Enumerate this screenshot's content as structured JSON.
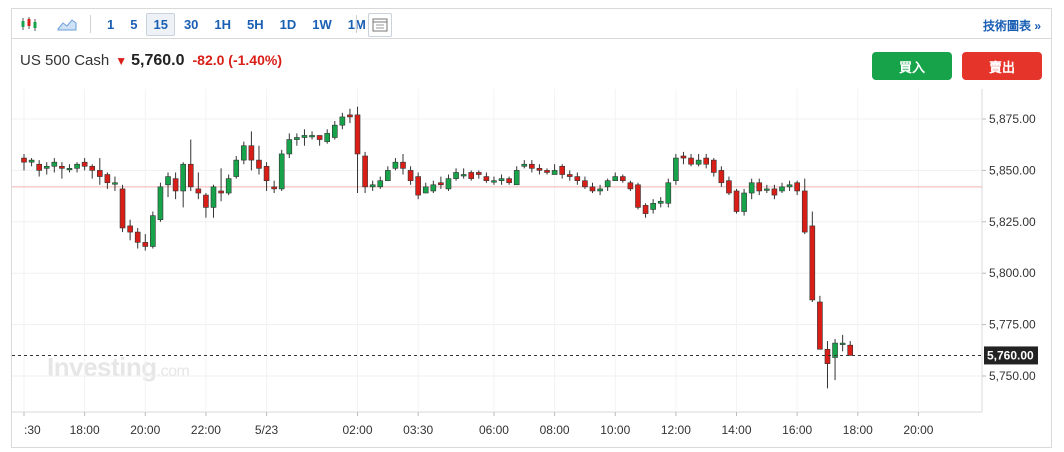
{
  "toolbar": {
    "intervals": [
      "1",
      "5",
      "15",
      "30",
      "1H",
      "5H",
      "1D",
      "1W",
      "1M"
    ],
    "active_interval": "15",
    "tech_link": "技術圖表 »"
  },
  "quote": {
    "name": "US 500 Cash",
    "price": "5,760.0",
    "change": "-82.0 (-1.40%)",
    "arrow": "▼"
  },
  "buttons": {
    "buy": "買入",
    "sell": "賣出"
  },
  "watermark": {
    "brand": "Investing",
    "suffix": ".com"
  },
  "colors": {
    "up": "#16a34a",
    "down": "#d91e18",
    "prev_close_line": "#f4b4b4",
    "accent": "#1a5fb4"
  },
  "chart_data": {
    "type": "candlestick",
    "y_range": [
      5740,
      5890
    ],
    "y_ticks": [
      "5,875.00",
      "5,850.00",
      "5,825.00",
      "5,800.00",
      "5,775.00",
      "5,750.00"
    ],
    "y_tick_values": [
      5875,
      5850,
      5825,
      5800,
      5775,
      5750
    ],
    "x_labels": [
      ":30",
      "18:00",
      "20:00",
      "22:00",
      "5/23",
      "02:00",
      "03:30",
      "06:00",
      "08:00",
      "10:00",
      "12:00",
      "14:00",
      "16:00",
      "18:00",
      "20:00"
    ],
    "x_label_index": [
      0,
      4,
      8,
      12,
      16,
      22,
      26,
      31,
      35,
      39,
      43,
      47,
      51,
      55,
      59
    ],
    "previous_close": 5842,
    "last_price": 5760,
    "last_price_label": "5,760.00",
    "candles": [
      [
        5856,
        5854,
        5858,
        5850
      ],
      [
        5854,
        5855,
        5856,
        5852
      ],
      [
        5853,
        5850,
        5855,
        5847
      ],
      [
        5851,
        5852,
        5854,
        5848
      ],
      [
        5852,
        5854,
        5856,
        5849
      ],
      [
        5852,
        5851,
        5854,
        5846
      ],
      [
        5851,
        5851,
        5853,
        5849
      ],
      [
        5851,
        5853,
        5854,
        5849
      ],
      [
        5854,
        5852,
        5856,
        5850
      ],
      [
        5852,
        5850,
        5853,
        5846
      ],
      [
        5850,
        5847,
        5856,
        5843
      ],
      [
        5848,
        5844,
        5849,
        5841
      ],
      [
        5844,
        5844,
        5847,
        5840
      ],
      [
        5841,
        5822,
        5843,
        5820
      ],
      [
        5823,
        5820,
        5826,
        5816
      ],
      [
        5820,
        5815,
        5822,
        5812
      ],
      [
        5815,
        5813,
        5819,
        5811
      ],
      [
        5813,
        5828,
        5830,
        5812
      ],
      [
        5826,
        5842,
        5844,
        5825
      ],
      [
        5843,
        5847,
        5849,
        5837
      ],
      [
        5846,
        5840,
        5849,
        5836
      ],
      [
        5840,
        5853,
        5854,
        5832
      ],
      [
        5853,
        5842,
        5865,
        5840
      ],
      [
        5841,
        5839,
        5849,
        5836
      ],
      [
        5838,
        5832,
        5839,
        5827
      ],
      [
        5832,
        5842,
        5843,
        5827
      ],
      [
        5840,
        5839,
        5851,
        5835
      ],
      [
        5839,
        5846,
        5848,
        5838
      ],
      [
        5847,
        5855,
        5857,
        5846
      ],
      [
        5855,
        5862,
        5864,
        5853
      ],
      [
        5862,
        5855,
        5869,
        5850
      ],
      [
        5855,
        5851,
        5862,
        5848
      ],
      [
        5852,
        5845,
        5854,
        5840
      ],
      [
        5842,
        5841,
        5845,
        5839
      ],
      [
        5841,
        5858,
        5860,
        5840
      ],
      [
        5858,
        5865,
        5868,
        5856
      ],
      [
        5865,
        5866,
        5868,
        5862
      ],
      [
        5866,
        5867,
        5870,
        5862
      ],
      [
        5867,
        5867,
        5869,
        5865
      ],
      [
        5867,
        5865,
        5867,
        5862
      ],
      [
        5864,
        5868,
        5870,
        5863
      ],
      [
        5866,
        5872,
        5874,
        5865
      ],
      [
        5872,
        5876,
        5878,
        5870
      ],
      [
        5877,
        5876,
        5880,
        5873
      ],
      [
        5877,
        5858,
        5881,
        5839
      ],
      [
        5857,
        5842,
        5859,
        5839
      ],
      [
        5842,
        5843,
        5845,
        5840
      ],
      [
        5842,
        5845,
        5847,
        5841
      ],
      [
        5845,
        5850,
        5852,
        5845
      ],
      [
        5851,
        5854,
        5856,
        5850
      ],
      [
        5854,
        5851,
        5858,
        5848
      ],
      [
        5850,
        5845,
        5852,
        5843
      ],
      [
        5847,
        5838,
        5849,
        5836
      ],
      [
        5839,
        5842,
        5844,
        5839
      ],
      [
        5840,
        5843,
        5845,
        5839
      ],
      [
        5844,
        5843,
        5847,
        5841
      ],
      [
        5841,
        5846,
        5848,
        5840
      ],
      [
        5846,
        5849,
        5851,
        5845
      ],
      [
        5848,
        5848,
        5851,
        5846
      ],
      [
        5849,
        5846,
        5850,
        5845
      ],
      [
        5849,
        5848,
        5850,
        5846
      ],
      [
        5847,
        5845,
        5849,
        5844
      ],
      [
        5845,
        5845,
        5847,
        5843
      ],
      [
        5845,
        5846,
        5848,
        5843
      ],
      [
        5846,
        5844,
        5847,
        5843
      ],
      [
        5843,
        5850,
        5852,
        5843
      ],
      [
        5852,
        5853,
        5855,
        5851
      ],
      [
        5853,
        5851,
        5855,
        5849
      ],
      [
        5851,
        5850,
        5853,
        5848
      ],
      [
        5850,
        5849,
        5851,
        5848
      ],
      [
        5848,
        5850,
        5853,
        5848
      ],
      [
        5852,
        5848,
        5853,
        5846
      ],
      [
        5848,
        5847,
        5850,
        5845
      ],
      [
        5847,
        5845,
        5849,
        5843
      ],
      [
        5845,
        5842,
        5847,
        5841
      ],
      [
        5842,
        5840,
        5844,
        5839
      ],
      [
        5840,
        5841,
        5843,
        5838
      ],
      [
        5842,
        5845,
        5846,
        5840
      ],
      [
        5845,
        5847,
        5849,
        5845
      ],
      [
        5847,
        5845,
        5848,
        5844
      ],
      [
        5844,
        5841,
        5845,
        5840
      ],
      [
        5843,
        5832,
        5844,
        5831
      ],
      [
        5833,
        5829,
        5834,
        5827
      ],
      [
        5831,
        5834,
        5836,
        5829
      ],
      [
        5834,
        5835,
        5837,
        5832
      ],
      [
        5834,
        5844,
        5846,
        5832
      ],
      [
        5845,
        5856,
        5858,
        5843
      ],
      [
        5857,
        5856,
        5859,
        5853
      ],
      [
        5856,
        5853,
        5858,
        5852
      ],
      [
        5853,
        5855,
        5858,
        5852
      ],
      [
        5856,
        5853,
        5858,
        5851
      ],
      [
        5855,
        5849,
        5856,
        5847
      ],
      [
        5850,
        5844,
        5852,
        5842
      ],
      [
        5845,
        5839,
        5847,
        5838
      ],
      [
        5840,
        5830,
        5841,
        5829
      ],
      [
        5830,
        5839,
        5841,
        5828
      ],
      [
        5839,
        5844,
        5846,
        5836
      ],
      [
        5844,
        5840,
        5846,
        5838
      ],
      [
        5841,
        5841,
        5843,
        5839
      ],
      [
        5841,
        5838,
        5843,
        5836
      ],
      [
        5840,
        5842,
        5844,
        5839
      ],
      [
        5842,
        5843,
        5845,
        5840
      ],
      [
        5844,
        5840,
        5845,
        5838
      ],
      [
        5840,
        5820,
        5846,
        5819
      ],
      [
        5823,
        5787,
        5830,
        5786
      ],
      [
        5786,
        5763,
        5789,
        5764
      ],
      [
        5763,
        5756,
        5767,
        5744
      ],
      [
        5759,
        5766,
        5768,
        5748
      ],
      [
        5766,
        5766,
        5770,
        5762
      ],
      [
        5765,
        5760,
        5767,
        5760
      ]
    ]
  }
}
